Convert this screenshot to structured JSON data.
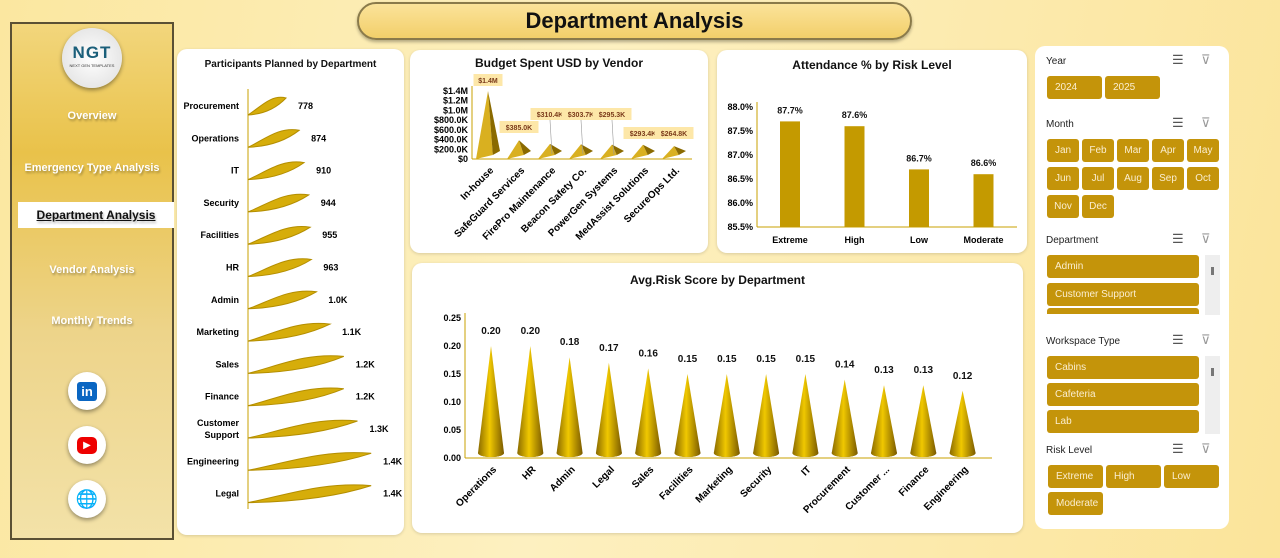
{
  "header": {
    "title": "Department Analysis"
  },
  "sidebar": {
    "logo_text": "NGT",
    "logo_sub": "NEXT GEN TEMPLATES",
    "items": [
      {
        "label": "Overview"
      },
      {
        "label": "Emergency Type Analysis"
      },
      {
        "label": "Department Analysis",
        "active": true
      },
      {
        "label": "Vendor Analysis"
      },
      {
        "label": "Monthly Trends"
      }
    ],
    "social": [
      {
        "icon": "linkedin-icon",
        "label": "in"
      },
      {
        "icon": "youtube-icon",
        "label": "▶"
      },
      {
        "icon": "globe-icon",
        "label": "🌐"
      }
    ]
  },
  "colors": {
    "accent": "#c4940a",
    "bar": "#c9a000",
    "label_bg": "#fde7a8"
  },
  "chart_data": [
    {
      "type": "bar",
      "orientation": "horizontal",
      "title": "Participants Planned by Department",
      "categories": [
        "Procurement",
        "Operations",
        "IT",
        "Security",
        "Facilities",
        "HR",
        "Admin",
        "Marketing",
        "Sales",
        "Finance",
        "Customer Support",
        "Engineering",
        "Legal"
      ],
      "values": [
        778,
        874,
        910,
        944,
        955,
        963,
        1000,
        1100,
        1200,
        1200,
        1300,
        1400,
        1400
      ],
      "labels": [
        "778",
        "874",
        "910",
        "944",
        "955",
        "963",
        "1.0K",
        "1.1K",
        "1.2K",
        "1.2K",
        "1.3K",
        "1.4K",
        "1.4K"
      ]
    },
    {
      "type": "bar",
      "shape": "pyramid",
      "title": "Budget Spent USD by Vendor",
      "categories": [
        "In-house",
        "SafeGuard Services",
        "FirePro Maintenance",
        "Beacon Safety Co.",
        "PowerGen Systems",
        "MedAssist Solutions",
        "SecureOps Ltd."
      ],
      "values": [
        1400000,
        385000,
        310400,
        303700,
        295300,
        293400,
        264800
      ],
      "labels": [
        "$1.4M",
        "$385.0K",
        "$310.4K",
        "$303.7K",
        "$295.3K",
        "$293.4K",
        "$264.8K"
      ],
      "ylim": [
        0,
        1400000
      ],
      "yticks": [
        "$0",
        "$200.0K",
        "$400.0K",
        "$600.0K",
        "$800.0K",
        "$1.0M",
        "$1.2M",
        "$1.4M"
      ]
    },
    {
      "type": "bar",
      "title": "Attendance % by Risk Level",
      "categories": [
        "Extreme",
        "High",
        "Low",
        "Moderate"
      ],
      "values": [
        87.7,
        87.6,
        86.7,
        86.6
      ],
      "labels": [
        "87.7%",
        "87.6%",
        "86.7%",
        "86.6%"
      ],
      "ylim": [
        85.5,
        88.0
      ],
      "yticks": [
        "85.5%",
        "86.0%",
        "86.5%",
        "87.0%",
        "87.5%",
        "88.0%"
      ]
    },
    {
      "type": "bar",
      "shape": "cone",
      "title": "Avg.Risk Score by Department",
      "categories": [
        "Operations",
        "HR",
        "Admin",
        "Legal",
        "Sales",
        "Facilities",
        "Marketing",
        "Security",
        "IT",
        "Procurement",
        "Customer ...",
        "Finance",
        "Engineering"
      ],
      "values": [
        0.2,
        0.2,
        0.18,
        0.17,
        0.16,
        0.15,
        0.15,
        0.15,
        0.15,
        0.14,
        0.13,
        0.13,
        0.12
      ],
      "labels": [
        "0.20",
        "0.20",
        "0.18",
        "0.17",
        "0.16",
        "0.15",
        "0.15",
        "0.15",
        "0.15",
        "0.14",
        "0.13",
        "0.13",
        "0.12"
      ],
      "ylim": [
        0,
        0.25
      ],
      "yticks": [
        "0.00",
        "0.05",
        "0.10",
        "0.15",
        "0.20",
        "0.25"
      ]
    }
  ],
  "slicers": {
    "year": {
      "title": "Year",
      "options": [
        "2024",
        "2025"
      ]
    },
    "month": {
      "title": "Month",
      "options": [
        "Jan",
        "Feb",
        "Mar",
        "Apr",
        "May",
        "Jun",
        "Jul",
        "Aug",
        "Sep",
        "Oct",
        "Nov",
        "Dec"
      ]
    },
    "department": {
      "title": "Department",
      "options": [
        "Admin",
        "Customer Support"
      ]
    },
    "workspace": {
      "title": "Workspace Type",
      "options": [
        "Cabins",
        "Cafeteria",
        "Lab"
      ]
    },
    "risk": {
      "title": "Risk Level",
      "options": [
        "Extreme",
        "High",
        "Low",
        "Moderate"
      ]
    }
  }
}
